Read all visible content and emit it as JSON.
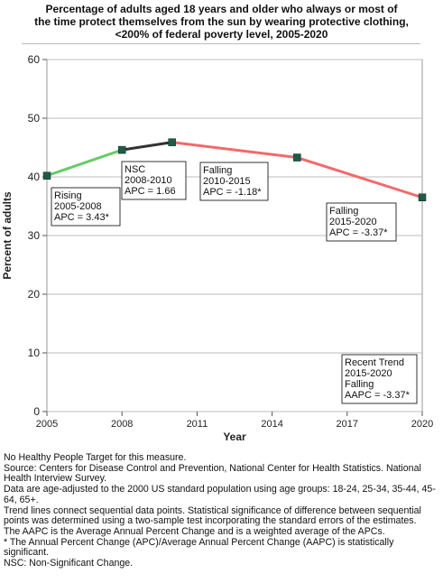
{
  "title_lines": [
    "Percentage of adults aged 18 years and older who always or most of",
    "the time protect themselves from the sun by wearing protective clothing,",
    "<200% of federal poverty level,  2005-2020"
  ],
  "chart_data": {
    "type": "line",
    "xlabel": "Year",
    "ylabel": "Percent of adults",
    "xlim": [
      2005,
      2020
    ],
    "ylim": [
      0,
      60
    ],
    "x_ticks": [
      2005,
      2008,
      2011,
      2014,
      2017,
      2020
    ],
    "y_ticks": [
      0,
      10,
      20,
      30,
      40,
      50,
      60
    ],
    "grid": "horizontal",
    "points": [
      {
        "x": 2005,
        "y": 40.2
      },
      {
        "x": 2008,
        "y": 44.6
      },
      {
        "x": 2010,
        "y": 45.9
      },
      {
        "x": 2015,
        "y": 43.3
      },
      {
        "x": 2020,
        "y": 36.5
      }
    ],
    "segments": [
      {
        "from": 2005,
        "to": 2008,
        "trend": "rising",
        "color": "#66cc66"
      },
      {
        "from": 2008,
        "to": 2010,
        "trend": "nsc",
        "color": "#333333"
      },
      {
        "from": 2010,
        "to": 2015,
        "trend": "falling",
        "color": "#f26a6a"
      },
      {
        "from": 2015,
        "to": 2020,
        "trend": "falling",
        "color": "#f26a6a"
      }
    ],
    "marker_color": "#1f5a4a",
    "annotations": [
      {
        "name": "rising",
        "lines": [
          "Rising",
          "2005-2008",
          "APC =  3.43*"
        ]
      },
      {
        "name": "nsc",
        "lines": [
          "NSC",
          "2008-2010",
          "APC =  1.66"
        ]
      },
      {
        "name": "falling-1",
        "lines": [
          "Falling",
          "2010-2015",
          "APC = -1.18*"
        ]
      },
      {
        "name": "falling-2",
        "lines": [
          "Falling",
          "2015-2020",
          "APC = -3.37*"
        ]
      },
      {
        "name": "recent-trend",
        "lines": [
          "Recent Trend",
          "2015-2020",
          "Falling",
          "AAPC = -3.37*"
        ]
      }
    ]
  },
  "notes": [
    "No Healthy People Target for this measure.",
    "Source: Centers for Disease Control and Prevention, National Center for Health Statistics. National Health Interview Survey.",
    "Data are age-adjusted to the 2000 US standard population using age groups: 18-24, 25-34, 35-44, 45-64, 65+.",
    "Trend lines connect sequential data points. Statistical significance of difference between sequential points was determined using a two-sample test incorporating the standard errors of the estimates.",
    "The AAPC is the Average Annual Percent Change and is a weighted average of the APCs.",
    "* The Annual Percent Change (APC)/Average Annual Percent Change (AAPC) is statistically significant.",
    "NSC: Non-Significant Change."
  ]
}
